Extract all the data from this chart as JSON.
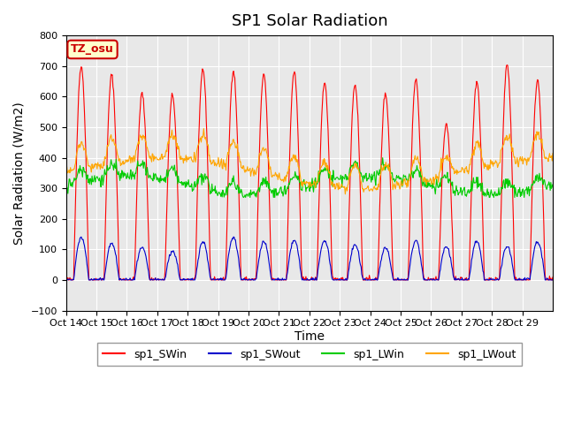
{
  "title": "SP1 Solar Radiation",
  "ylabel": "Solar Radiation (W/m2)",
  "xlabel": "Time",
  "ylim": [
    -100,
    800
  ],
  "yticks": [
    -100,
    0,
    100,
    200,
    300,
    400,
    500,
    600,
    700,
    800
  ],
  "xtick_labels": [
    "Oct 14",
    "Oct 15",
    "Oct 16",
    "Oct 17",
    "Oct 18",
    "Oct 19",
    "Oct 20",
    "Oct 21",
    "Oct 22",
    "Oct 23",
    "Oct 24",
    "Oct 25",
    "Oct 26",
    "Oct 27",
    "Oct 28",
    "Oct 29"
  ],
  "colors": {
    "SWin": "#ff0000",
    "SWout": "#0000cc",
    "LWin": "#00cc00",
    "LWout": "#ffa500"
  },
  "legend_labels": [
    "sp1_SWin",
    "sp1_SWout",
    "sp1_LWin",
    "sp1_LWout"
  ],
  "tz_label": "TZ_osu",
  "tz_facecolor": "#ffffcc",
  "tz_edgecolor": "#cc0000",
  "plot_bg": "#e8e8e8",
  "title_fontsize": 13,
  "axis_fontsize": 10,
  "tick_fontsize": 8,
  "sw_peaks": [
    700,
    670,
    610,
    605,
    690,
    685,
    670,
    680,
    645,
    640,
    610,
    655,
    510,
    650,
    705,
    655
  ],
  "sw_out_peaks": [
    140,
    120,
    105,
    95,
    125,
    140,
    125,
    130,
    130,
    115,
    105,
    130,
    110,
    125,
    110,
    125
  ],
  "lw_base": 310,
  "lw_out_base": 350
}
